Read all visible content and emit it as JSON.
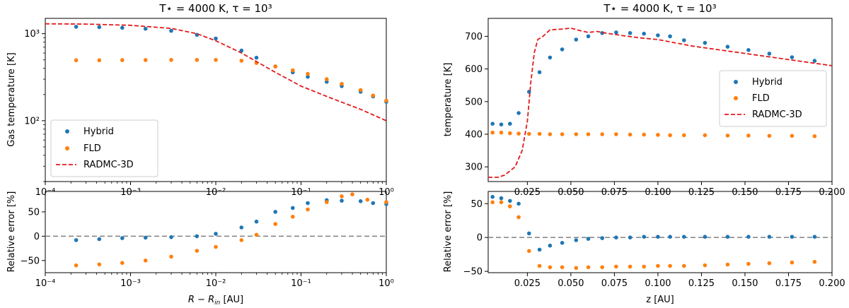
{
  "chart_data": [
    {
      "type": "scatter",
      "panel": "left-top",
      "title": "$T_\\star = 4000$ K, $\\tau = 10^3$",
      "title_display": "T⋆ = 4000 K, τ = 10³",
      "xscale": "log",
      "yscale": "log",
      "xlim": [
        0.0001,
        1
      ],
      "ylim": [
        20,
        1500
      ],
      "ylabel": "Gas temperature [K]",
      "y_ticks": [
        {
          "v": 100,
          "label": "10²"
        },
        {
          "v": 1000,
          "label": "10³"
        }
      ],
      "legend": {
        "placement": "lower-left",
        "entries": [
          "Hybrid",
          "FLD",
          "RADMC-3D"
        ]
      },
      "series": [
        {
          "name": "Hybrid",
          "style": "dots",
          "color": "#1f77b4",
          "x": [
            0.00023,
            0.00043,
            0.0008,
            0.0015,
            0.003,
            0.006,
            0.01,
            0.02,
            0.03,
            0.05,
            0.08,
            0.12,
            0.2,
            0.3,
            0.5,
            0.7,
            1.0
          ],
          "y": [
            1200,
            1190,
            1170,
            1140,
            1080,
            970,
            880,
            640,
            530,
            420,
            360,
            320,
            280,
            250,
            215,
            190,
            165
          ]
        },
        {
          "name": "FLD",
          "style": "dots",
          "color": "#ff7f0e",
          "x": [
            0.00023,
            0.00043,
            0.0008,
            0.0015,
            0.003,
            0.006,
            0.01,
            0.02,
            0.03,
            0.05,
            0.08,
            0.12,
            0.2,
            0.3,
            0.5,
            0.7,
            1.0
          ],
          "y": [
            495,
            495,
            497,
            498,
            500,
            500,
            500,
            490,
            460,
            420,
            380,
            345,
            300,
            265,
            225,
            195,
            170
          ]
        },
        {
          "name": "RADMC-3D",
          "style": "dashed",
          "color": "#e31a1c",
          "x": [
            0.0001,
            0.0003,
            0.001,
            0.003,
            0.006,
            0.01,
            0.02,
            0.05,
            0.1,
            0.2,
            0.5,
            1.0
          ],
          "y": [
            1300,
            1290,
            1250,
            1150,
            1000,
            830,
            600,
            360,
            250,
            190,
            135,
            100
          ]
        }
      ]
    },
    {
      "type": "scatter",
      "panel": "left-bottom",
      "xscale": "log",
      "xlim": [
        0.0001,
        1
      ],
      "ylim": [
        -75,
        92
      ],
      "xlabel": "$R - R_{\\rm in}$ [AU]",
      "xlabel_display": "R − R",
      "xlabel_sub": "in",
      "xlabel_unit": " [AU]",
      "ylabel": "Relative error [%]",
      "x_ticks": [
        {
          "v": 0.0001,
          "label": "10⁻⁴"
        },
        {
          "v": 0.001,
          "label": "10⁻³"
        },
        {
          "v": 0.01,
          "label": "10⁻²"
        },
        {
          "v": 0.1,
          "label": "10⁻¹"
        },
        {
          "v": 1,
          "label": "10⁰"
        }
      ],
      "y_ticks": [
        {
          "v": -50,
          "label": "−50"
        },
        {
          "v": 0,
          "label": "0"
        },
        {
          "v": 50,
          "label": "50"
        }
      ],
      "reference_line": 0,
      "series": [
        {
          "name": "Hybrid",
          "style": "dots",
          "color": "#1f77b4",
          "x": [
            0.00023,
            0.00043,
            0.0008,
            0.0015,
            0.003,
            0.006,
            0.01,
            0.02,
            0.03,
            0.05,
            0.08,
            0.12,
            0.2,
            0.3,
            0.5,
            0.7,
            1.0
          ],
          "y": [
            -8,
            -6,
            -4,
            -3,
            -2,
            0,
            5,
            18,
            30,
            50,
            58,
            68,
            74,
            73,
            72,
            68,
            66
          ]
        },
        {
          "name": "FLD",
          "style": "dots",
          "color": "#ff7f0e",
          "x": [
            0.00023,
            0.00043,
            0.0008,
            0.0015,
            0.003,
            0.006,
            0.01,
            0.02,
            0.03,
            0.05,
            0.08,
            0.12,
            0.2,
            0.3,
            0.4,
            0.6,
            1.0
          ],
          "y": [
            -60,
            -58,
            -55,
            -50,
            -42,
            -30,
            -22,
            -8,
            3,
            25,
            40,
            55,
            70,
            82,
            86,
            75,
            70
          ]
        }
      ]
    },
    {
      "type": "scatter",
      "panel": "right-top",
      "title": "$T_\\star = 4000$ K, $\\tau = 10^3$",
      "title_display": "T⋆ = 4000 K, τ = 10³",
      "xlim": [
        0.0025,
        0.2
      ],
      "ylim": [
        255,
        755
      ],
      "ylabel": "temperature [K]",
      "y_ticks": [
        {
          "v": 300,
          "label": "300"
        },
        {
          "v": 400,
          "label": "400"
        },
        {
          "v": 500,
          "label": "500"
        },
        {
          "v": 600,
          "label": "600"
        },
        {
          "v": 700,
          "label": "700"
        }
      ],
      "legend": {
        "placement": "center-right",
        "entries": [
          "Hybrid",
          "FLD",
          "RADMC-3D"
        ]
      },
      "series": [
        {
          "name": "Hybrid",
          "style": "dots",
          "color": "#1f77b4",
          "x": [
            0.005,
            0.01,
            0.015,
            0.02,
            0.026,
            0.032,
            0.038,
            0.045,
            0.053,
            0.06,
            0.068,
            0.076,
            0.084,
            0.092,
            0.1,
            0.107,
            0.115,
            0.127,
            0.14,
            0.152,
            0.164,
            0.177,
            0.19
          ],
          "y": [
            432,
            430,
            432,
            465,
            530,
            590,
            635,
            660,
            690,
            700,
            710,
            712,
            710,
            708,
            703,
            700,
            688,
            680,
            668,
            658,
            647,
            636,
            625
          ]
        },
        {
          "name": "FLD",
          "style": "dots",
          "color": "#ff7f0e",
          "x": [
            0.005,
            0.01,
            0.015,
            0.02,
            0.026,
            0.032,
            0.038,
            0.045,
            0.053,
            0.06,
            0.068,
            0.076,
            0.084,
            0.092,
            0.1,
            0.107,
            0.115,
            0.127,
            0.14,
            0.152,
            0.164,
            0.177,
            0.19
          ],
          "y": [
            405,
            405,
            403,
            402,
            401,
            401,
            400,
            400,
            400,
            400,
            400,
            400,
            399,
            399,
            398,
            397,
            397,
            397,
            396,
            396,
            395,
            395,
            394
          ]
        },
        {
          "name": "RADMC-3D",
          "style": "dashed",
          "color": "#e31a1c",
          "x": [
            0.0025,
            0.008,
            0.012,
            0.018,
            0.022,
            0.025,
            0.027,
            0.029,
            0.031,
            0.034,
            0.038,
            0.045,
            0.05,
            0.055,
            0.06,
            0.065,
            0.07,
            0.08,
            0.09,
            0.1,
            0.11,
            0.12,
            0.14,
            0.16,
            0.18,
            0.2
          ],
          "y": [
            268,
            268,
            275,
            300,
            350,
            440,
            560,
            650,
            690,
            700,
            720,
            722,
            725,
            718,
            712,
            715,
            710,
            702,
            695,
            690,
            680,
            670,
            655,
            640,
            625,
            610
          ]
        }
      ]
    },
    {
      "type": "scatter",
      "panel": "right-bottom",
      "xlim": [
        0.0025,
        0.2
      ],
      "ylim": [
        -52,
        68
      ],
      "xlabel": "$z$ [AU]",
      "xlabel_display": "z [AU]",
      "ylabel": "Relative error [%]",
      "x_ticks": [
        {
          "v": 0.025,
          "label": "0.025"
        },
        {
          "v": 0.05,
          "label": "0.050"
        },
        {
          "v": 0.075,
          "label": "0.075"
        },
        {
          "v": 0.1,
          "label": "0.100"
        },
        {
          "v": 0.125,
          "label": "0.125"
        },
        {
          "v": 0.15,
          "label": "0.150"
        },
        {
          "v": 0.175,
          "label": "0.175"
        },
        {
          "v": 0.2,
          "label": "0.200"
        }
      ],
      "y_ticks": [
        {
          "v": -50,
          "label": "−50"
        },
        {
          "v": 0,
          "label": "0"
        },
        {
          "v": 50,
          "label": "50"
        }
      ],
      "reference_line": 0,
      "series": [
        {
          "name": "Hybrid",
          "style": "dots",
          "color": "#1f77b4",
          "x": [
            0.005,
            0.01,
            0.015,
            0.02,
            0.026,
            0.032,
            0.038,
            0.045,
            0.053,
            0.06,
            0.068,
            0.076,
            0.084,
            0.092,
            0.1,
            0.107,
            0.115,
            0.127,
            0.14,
            0.152,
            0.164,
            0.177,
            0.19
          ],
          "y": [
            60,
            58,
            54,
            50,
            6,
            -18,
            -12,
            -8,
            -4,
            -2,
            -1,
            0,
            0,
            1,
            1,
            1,
            1,
            1,
            1,
            1,
            1,
            1,
            1
          ]
        },
        {
          "name": "FLD",
          "style": "dots",
          "color": "#ff7f0e",
          "x": [
            0.005,
            0.01,
            0.015,
            0.02,
            0.026,
            0.032,
            0.038,
            0.045,
            0.053,
            0.06,
            0.068,
            0.076,
            0.084,
            0.092,
            0.1,
            0.107,
            0.115,
            0.127,
            0.14,
            0.152,
            0.164,
            0.177,
            0.19
          ],
          "y": [
            52,
            52,
            46,
            30,
            -20,
            -42,
            -44,
            -44,
            -45,
            -44,
            -44,
            -43,
            -43,
            -43,
            -42,
            -42,
            -42,
            -41,
            -40,
            -39,
            -38,
            -37,
            -36
          ]
        }
      ]
    }
  ]
}
